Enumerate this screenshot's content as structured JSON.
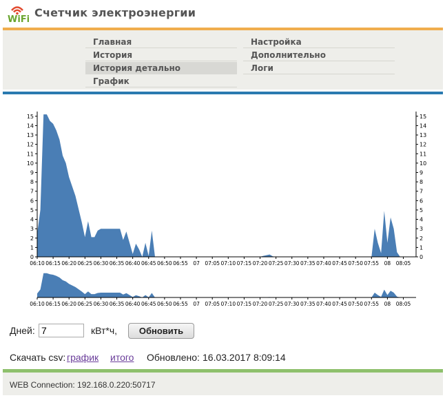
{
  "header": {
    "logo_text": "WiFi",
    "title": "Счетчик электроэнергии"
  },
  "nav": {
    "left": [
      {
        "label": "Главная",
        "active": false
      },
      {
        "label": "История",
        "active": false
      },
      {
        "label": "История детально",
        "active": true
      },
      {
        "label": "График",
        "active": false
      }
    ],
    "right": [
      {
        "label": "Настройка",
        "active": false
      },
      {
        "label": "Дополнительно",
        "active": false
      },
      {
        "label": "Логи",
        "active": false
      }
    ]
  },
  "colors": {
    "series": "#4a7eb5",
    "nav_accent": "#f0ad4e",
    "chart_accent": "#2a7ab0",
    "footer_accent": "#8ec06c"
  },
  "chart_data": {
    "type": "area",
    "x_tick_labels": [
      "06:10",
      "06:15",
      "06:20",
      "06:25",
      "06:30",
      "06:35",
      "06:40",
      "06:45",
      "06:50",
      "06:55",
      "07",
      "07:05",
      "07:10",
      "07:15",
      "07:20",
      "07:25",
      "07:30",
      "07:35",
      "07:40",
      "07:45",
      "07:50",
      "07:55",
      "08",
      "08:05"
    ],
    "y_ticks": [
      0,
      1,
      2,
      3,
      4,
      5,
      6,
      7,
      8,
      9,
      10,
      11,
      12,
      13,
      14,
      15
    ],
    "ylim": [
      0,
      15.5
    ],
    "x_range_minutes": [
      0,
      119
    ],
    "series": [
      {
        "x": [
          0,
          1,
          2,
          3,
          4,
          5,
          6,
          7,
          8,
          9,
          10,
          12,
          14,
          15,
          16,
          17,
          18,
          19,
          20,
          26,
          27,
          28,
          30,
          31,
          32,
          33,
          34,
          35,
          36,
          37,
          40,
          41,
          70,
          71,
          73,
          74,
          75,
          105,
          106,
          107,
          108,
          109,
          110,
          111,
          112,
          113,
          114,
          115,
          116,
          117,
          118,
          119
        ],
        "y": [
          2.5,
          5,
          15.2,
          15.2,
          14.5,
          14.2,
          13.5,
          12.5,
          10.8,
          10,
          8.5,
          6.5,
          3.7,
          2.1,
          3.8,
          2.1,
          2.1,
          2.8,
          3,
          3,
          1.8,
          2.7,
          0.3,
          1.4,
          0.8,
          0,
          1.5,
          0.1,
          2.8,
          0,
          0,
          0,
          0,
          0.1,
          0.25,
          0.05,
          0,
          0,
          3,
          1.5,
          0.4,
          4.9,
          1.5,
          4.2,
          3,
          0.5,
          0,
          0,
          0,
          0,
          0,
          0
        ],
        "y_display_note": ""
      }
    ]
  },
  "controls": {
    "days_label": "Дней:",
    "days_value": "7",
    "unit_label": "кВт*ч,",
    "refresh_label": "Обновить",
    "download_label": "Скачать csv:",
    "link_graph": "график",
    "link_total": "итого",
    "updated_label": "Обновлено:",
    "updated_value": "16.03.2017 8:09:14"
  },
  "footer": {
    "connection": "WEB Connection: 192.168.0.220:50717"
  }
}
